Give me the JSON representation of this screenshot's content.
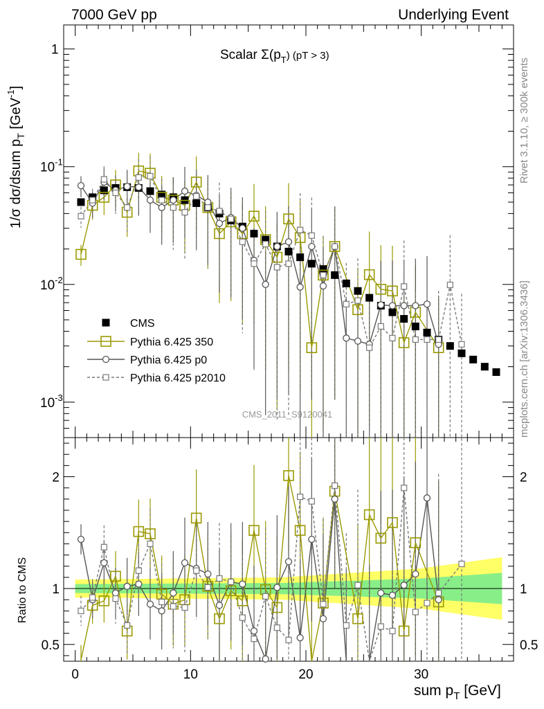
{
  "header": {
    "left": "7000 GeV pp",
    "right": "Underlying Event"
  },
  "side": {
    "right_top": "Rivet 3.1.10, ≥ 300k events",
    "right_bottom": "mcplots.cern.ch [arXiv:1306.3436]"
  },
  "plot_title": {
    "main": "Scalar Σ(p",
    "sub": "T",
    "close": ") (pT > 3)"
  },
  "watermark": "CMS_2011_S9120041",
  "chart_data": [
    {
      "type": "scatter",
      "xlabel": "sum p_T [GeV]",
      "ylabel": "1/σ dσ/dsum p_T [GeV^-1]",
      "yscale": "log",
      "xlim": [
        -1,
        38
      ],
      "ylim": [
        0.0005,
        1.6
      ],
      "x_ticks": [
        "0",
        "10",
        "20",
        "30"
      ],
      "y_ticks": [
        "10^-3",
        "10^-2",
        "10^-1",
        "1"
      ],
      "legend_position": "middle-left",
      "series": [
        {
          "name": "CMS",
          "color": "#000000",
          "marker": "filled-square",
          "points": [
            [
              0.5,
              0.05
            ],
            [
              1.5,
              0.055
            ],
            [
              2.5,
              0.063
            ],
            [
              3.5,
              0.066
            ],
            [
              4.5,
              0.067
            ],
            [
              5.5,
              0.066
            ],
            [
              6.5,
              0.062
            ],
            [
              7.5,
              0.058
            ],
            [
              8.5,
              0.055
            ],
            [
              9.5,
              0.052
            ],
            [
              10.5,
              0.049
            ],
            [
              11.5,
              0.045
            ],
            [
              12.5,
              0.04
            ],
            [
              13.5,
              0.035
            ],
            [
              14.5,
              0.031
            ],
            [
              15.5,
              0.027
            ],
            [
              16.5,
              0.024
            ],
            [
              17.5,
              0.021
            ],
            [
              18.5,
              0.019
            ],
            [
              19.5,
              0.017
            ],
            [
              20.5,
              0.015
            ],
            [
              21.5,
              0.0135
            ],
            [
              22.5,
              0.012
            ],
            [
              23.5,
              0.0102
            ],
            [
              24.5,
              0.0088
            ],
            [
              25.5,
              0.0077
            ],
            [
              26.5,
              0.0066
            ],
            [
              27.5,
              0.0058
            ],
            [
              28.5,
              0.0051
            ],
            [
              29.5,
              0.0044
            ],
            [
              30.5,
              0.0039
            ],
            [
              31.5,
              0.0034
            ],
            [
              32.5,
              0.003
            ],
            [
              33.5,
              0.0026
            ],
            [
              34.5,
              0.0023
            ],
            [
              35.5,
              0.002
            ],
            [
              36.5,
              0.0018
            ]
          ]
        },
        {
          "name": "Pythia 6.425 350",
          "color": "#999900",
          "marker": "open-square-large",
          "line": "solid",
          "points": [
            [
              0.5,
              0.018
            ],
            [
              1.5,
              0.047
            ],
            [
              2.5,
              0.055
            ],
            [
              3.5,
              0.07
            ],
            [
              4.5,
              0.041
            ],
            [
              5.5,
              0.092
            ],
            [
              6.5,
              0.088
            ],
            [
              7.5,
              0.055
            ],
            [
              8.5,
              0.052
            ],
            [
              9.5,
              0.047
            ],
            [
              10.5,
              0.074
            ],
            [
              11.5,
              0.045
            ],
            [
              12.5,
              0.027
            ],
            [
              13.5,
              0.034
            ],
            [
              14.5,
              0.027
            ],
            [
              15.5,
              0.038
            ],
            [
              16.5,
              0.024
            ],
            [
              17.5,
              0.017
            ],
            [
              18.5,
              0.036
            ],
            [
              19.5,
              0.025
            ],
            [
              20.5,
              0.0029
            ],
            [
              21.5,
              0.012
            ],
            [
              22.5,
              0.021
            ],
            [
              24.5,
              0.0061
            ],
            [
              25.5,
              0.0121
            ],
            [
              26.5,
              0.0091
            ],
            [
              27.5,
              0.0088
            ],
            [
              28.5,
              0.0032
            ],
            [
              29.5,
              0.0058
            ],
            [
              31.5,
              0.0029
            ]
          ]
        },
        {
          "name": "Pythia 6.425 p0",
          "color": "#555555",
          "marker": "open-circle",
          "line": "solid",
          "points": [
            [
              0.5,
              0.069
            ],
            [
              1.5,
              0.049
            ],
            [
              2.5,
              0.074
            ],
            [
              3.5,
              0.063
            ],
            [
              4.5,
              0.068
            ],
            [
              5.5,
              0.067
            ],
            [
              6.5,
              0.052
            ],
            [
              7.5,
              0.045
            ],
            [
              8.5,
              0.052
            ],
            [
              9.5,
              0.062
            ],
            [
              10.5,
              0.057
            ],
            [
              11.5,
              0.05
            ],
            [
              12.5,
              0.033
            ],
            [
              13.5,
              0.037
            ],
            [
              14.5,
              0.03
            ],
            [
              15.5,
              0.016
            ],
            [
              16.5,
              0.01
            ],
            [
              17.5,
              0.021
            ],
            [
              18.5,
              0.023
            ],
            [
              19.5,
              0.0095
            ],
            [
              20.5,
              0.021
            ],
            [
              21.5,
              0.0097
            ],
            [
              22.5,
              0.021
            ],
            [
              23.5,
              0.0035
            ],
            [
              24.5,
              0.0033
            ],
            [
              25.5,
              0.0031
            ],
            [
              26.5,
              0.0067
            ],
            [
              27.5,
              0.0066
            ],
            [
              28.5,
              0.0066
            ],
            [
              29.5,
              0.0066
            ],
            [
              30.5,
              0.0068
            ],
            [
              31.5,
              0.0031
            ]
          ]
        },
        {
          "name": "Pythia 6.425 p2010",
          "color": "#777777",
          "marker": "open-square-small",
          "line": "dashed",
          "points": [
            [
              0.5,
              0.038
            ],
            [
              1.5,
              0.052
            ],
            [
              2.5,
              0.078
            ],
            [
              3.5,
              0.06
            ],
            [
              4.5,
              0.045
            ],
            [
              5.5,
              0.081
            ],
            [
              6.5,
              0.083
            ],
            [
              7.5,
              0.052
            ],
            [
              8.5,
              0.045
            ],
            [
              9.5,
              0.041
            ],
            [
              10.5,
              0.056
            ],
            [
              11.5,
              0.045
            ],
            [
              12.5,
              0.042
            ],
            [
              13.5,
              0.036
            ],
            [
              14.5,
              0.023
            ],
            [
              15.5,
              0.015
            ],
            [
              16.5,
              0.022
            ],
            [
              17.5,
              0.014
            ],
            [
              18.5,
              0.015
            ],
            [
              19.5,
              0.029
            ],
            [
              20.5,
              0.026
            ],
            [
              21.5,
              0.012
            ],
            [
              22.5,
              0.021
            ],
            [
              23.5,
              0.0068
            ],
            [
              24.5,
              0.0073
            ],
            [
              25.5,
              0.0029
            ],
            [
              26.5,
              0.0044
            ],
            [
              27.5,
              0.0035
            ],
            [
              28.5,
              0.0096
            ],
            [
              29.5,
              0.0034
            ],
            [
              30.5,
              0.0034
            ],
            [
              31.5,
              0.0034
            ],
            [
              32.5,
              0.0099
            ],
            [
              33.5,
              0.0031
            ]
          ]
        }
      ]
    },
    {
      "type": "line",
      "xlabel": "sum p_T [GeV]",
      "ylabel": "Ratio to CMS",
      "xlim": [
        -1,
        38
      ],
      "ylim": [
        0.35,
        2.35
      ],
      "x_ticks": [
        "0",
        "10",
        "20",
        "30"
      ],
      "y_ticks": [
        "0.5",
        "1",
        "2"
      ],
      "reference_line": 1,
      "uncertainty_bands": [
        {
          "color": "#ffff66",
          "x": [
            0,
            18,
            30,
            37
          ],
          "half_width": [
            0.08,
            0.1,
            0.18,
            0.28
          ]
        },
        {
          "color": "#88ee88",
          "x": [
            0,
            18,
            30,
            37
          ],
          "half_width": [
            0.04,
            0.05,
            0.09,
            0.14
          ]
        }
      ],
      "series": [
        {
          "name": "Pythia 6.425 350",
          "color": "#999900",
          "points": [
            [
              0.5,
              0.36
            ],
            [
              1.5,
              0.85
            ],
            [
              2.5,
              0.89
            ],
            [
              3.5,
              1.11
            ],
            [
              4.5,
              0.62
            ],
            [
              5.5,
              1.51
            ],
            [
              6.5,
              1.49
            ],
            [
              7.5,
              0.95
            ],
            [
              8.5,
              0.86
            ],
            [
              9.5,
              0.9
            ],
            [
              10.5,
              1.63
            ],
            [
              11.5,
              1.02
            ],
            [
              12.5,
              0.73
            ],
            [
              13.5,
              0.98
            ],
            [
              14.5,
              0.89
            ],
            [
              15.5,
              1.52
            ],
            [
              16.5,
              0.99
            ],
            [
              17.5,
              0.83
            ],
            [
              18.5,
              2.01
            ],
            [
              19.5,
              1.52
            ],
            [
              20.5,
              0.19
            ],
            [
              21.5,
              0.87
            ],
            [
              22.5,
              1.87
            ],
            [
              24.5,
              0.73
            ],
            [
              25.5,
              1.66
            ],
            [
              26.5,
              1.45
            ],
            [
              27.5,
              1.59
            ],
            [
              28.5,
              0.62
            ],
            [
              29.5,
              1.41
            ],
            [
              31.5,
              0.88
            ]
          ]
        },
        {
          "name": "Pythia 6.425 p0",
          "color": "#555555",
          "points": [
            [
              0.5,
              1.44
            ],
            [
              1.5,
              0.9
            ],
            [
              2.5,
              1.23
            ],
            [
              3.5,
              0.96
            ],
            [
              4.5,
              1.02
            ],
            [
              5.5,
              1.04
            ],
            [
              6.5,
              0.86
            ],
            [
              7.5,
              0.8
            ],
            [
              8.5,
              0.96
            ],
            [
              9.5,
              1.23
            ],
            [
              10.5,
              1.18
            ],
            [
              11.5,
              1.13
            ],
            [
              12.5,
              0.85
            ],
            [
              13.5,
              1.06
            ],
            [
              14.5,
              1.04
            ],
            [
              15.5,
              0.62
            ],
            [
              16.5,
              0.37
            ],
            [
              17.5,
              1.01
            ],
            [
              18.5,
              1.24
            ],
            [
              19.5,
              0.56
            ],
            [
              20.5,
              1.44
            ],
            [
              21.5,
              0.73
            ],
            [
              22.5,
              1.8
            ],
            [
              23.5,
              0.35
            ],
            [
              25.5,
              0.33
            ],
            [
              26.5,
              0.96
            ],
            [
              27.5,
              0.94
            ],
            [
              28.5,
              1.03
            ],
            [
              29.5,
              1.13
            ],
            [
              30.5,
              1.81
            ],
            [
              31.5,
              0.9
            ]
          ]
        },
        {
          "name": "Pythia 6.425 p2010",
          "color": "#777777",
          "points": [
            [
              0.5,
              0.8
            ],
            [
              1.5,
              0.92
            ],
            [
              2.5,
              1.37
            ],
            [
              3.5,
              0.91
            ],
            [
              4.5,
              0.67
            ],
            [
              5.5,
              1.16
            ],
            [
              6.5,
              1.4
            ],
            [
              7.5,
              0.88
            ],
            [
              8.5,
              0.84
            ],
            [
              9.5,
              0.83
            ],
            [
              10.5,
              1.16
            ],
            [
              11.5,
              1.01
            ],
            [
              12.5,
              1.09
            ],
            [
              13.5,
              1.06
            ],
            [
              14.5,
              0.74
            ],
            [
              15.5,
              0.55
            ],
            [
              16.5,
              0.93
            ],
            [
              17.5,
              0.65
            ],
            [
              18.5,
              0.54
            ],
            [
              19.5,
              1.82
            ],
            [
              20.5,
              1.78
            ],
            [
              21.5,
              0.86
            ],
            [
              22.5,
              1.92
            ],
            [
              23.5,
              0.67
            ],
            [
              24.5,
              1.03
            ],
            [
              25.5,
              0.33
            ],
            [
              26.5,
              0.66
            ],
            [
              27.5,
              0.62
            ],
            [
              28.5,
              1.9
            ],
            [
              29.5,
              0.79
            ],
            [
              30.5,
              0.87
            ],
            [
              31.5,
              0.96
            ],
            [
              33.5,
              1.22
            ]
          ]
        }
      ]
    }
  ]
}
